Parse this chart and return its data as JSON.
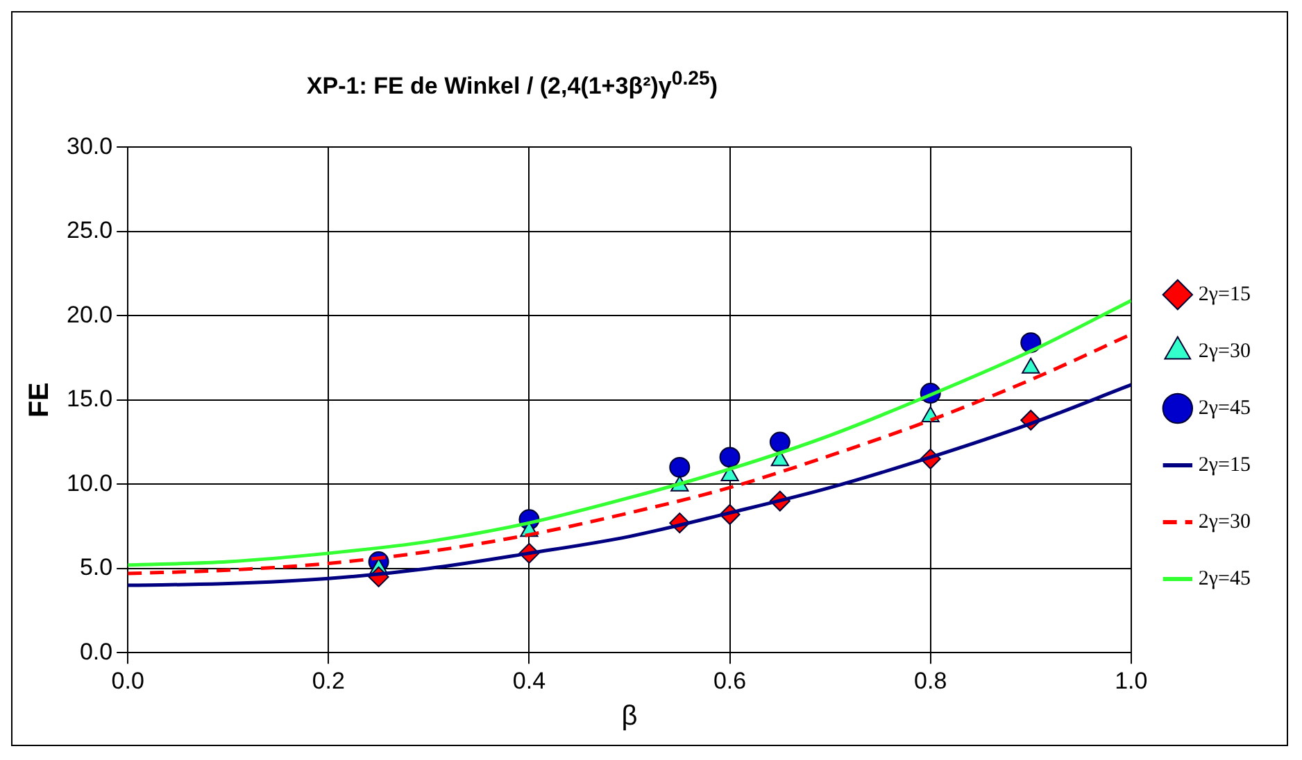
{
  "chart_data": {
    "type": "scatter",
    "title": "XP-1: FE de Winkel / (2,4(1+3β²)γ$^{0.25}$)",
    "xlabel": "β",
    "ylabel": "FE",
    "xlim": [
      0,
      1
    ],
    "xticks": [
      {
        "value": 0,
        "label": "0.0"
      },
      {
        "value": 0.2,
        "label": "0.2"
      },
      {
        "value": 0.4,
        "label": "0.4"
      },
      {
        "value": 0.6,
        "label": "0.6"
      },
      {
        "value": 0.8,
        "label": "0.8"
      },
      {
        "value": 1,
        "label": "1.0"
      }
    ],
    "ylim": [
      0,
      30
    ],
    "yticks": [
      {
        "value": 0,
        "label": "0.0"
      },
      {
        "value": 5,
        "label": "5.0"
      },
      {
        "value": 10,
        "label": "10.0"
      },
      {
        "value": 15,
        "label": "15.0"
      },
      {
        "value": 20,
        "label": "20.0"
      },
      {
        "value": 25,
        "label": "25.0"
      },
      {
        "value": 30,
        "label": "30.0"
      }
    ],
    "grid": true,
    "legend": "right",
    "series": [
      {
        "type": "scatter",
        "name": "2γ=15",
        "color": "#ff0000",
        "marker": "diamond",
        "x": [
          0.25,
          0.4,
          0.55,
          0.6,
          0.65,
          0.8,
          0.9
        ],
        "values": [
          4.5,
          5.9,
          7.7,
          8.2,
          9.0,
          11.5,
          13.8
        ]
      },
      {
        "type": "scatter",
        "name": "2γ=30",
        "color": "#33ffcc",
        "marker": "triangle",
        "x": [
          0.25,
          0.4,
          0.55,
          0.6,
          0.65,
          0.8,
          0.9
        ],
        "values": [
          5.0,
          7.2,
          9.9,
          10.5,
          11.4,
          14.0,
          16.9
        ]
      },
      {
        "type": "scatter",
        "name": "2γ=45",
        "color": "#0000cc",
        "marker": "circle",
        "x": [
          0.25,
          0.4,
          0.55,
          0.6,
          0.65,
          0.8,
          0.9
        ],
        "values": [
          5.4,
          7.9,
          11.0,
          11.6,
          12.5,
          15.4,
          18.4
        ]
      },
      {
        "type": "line",
        "name": "2γ=15",
        "color": "#000080",
        "marker": "none",
        "line_style": "solid",
        "x": [
          0,
          0.1,
          0.2,
          0.3,
          0.4,
          0.5,
          0.6,
          0.7,
          0.8,
          0.9,
          1
        ],
        "values": [
          4.0,
          4.1,
          4.4,
          5.0,
          5.9,
          6.9,
          8.3,
          9.8,
          11.6,
          13.6,
          15.9
        ]
      },
      {
        "type": "line",
        "name": "2γ=30",
        "color": "#ff0000",
        "marker": "none",
        "line_style": "dashed",
        "x": [
          0,
          0.1,
          0.2,
          0.3,
          0.4,
          0.5,
          0.6,
          0.7,
          0.8,
          0.9,
          1
        ],
        "values": [
          4.7,
          4.9,
          5.3,
          6.0,
          7.0,
          8.3,
          9.8,
          11.7,
          13.8,
          16.2,
          18.9
        ]
      },
      {
        "type": "line",
        "name": "2γ=45",
        "color": "#33ff33",
        "marker": "none",
        "line_style": "solid",
        "x": [
          0,
          0.1,
          0.2,
          0.3,
          0.4,
          0.5,
          0.6,
          0.7,
          0.8,
          0.9,
          1
        ],
        "values": [
          5.2,
          5.4,
          5.9,
          6.6,
          7.7,
          9.2,
          10.9,
          12.9,
          15.3,
          17.9,
          20.9
        ]
      }
    ]
  }
}
